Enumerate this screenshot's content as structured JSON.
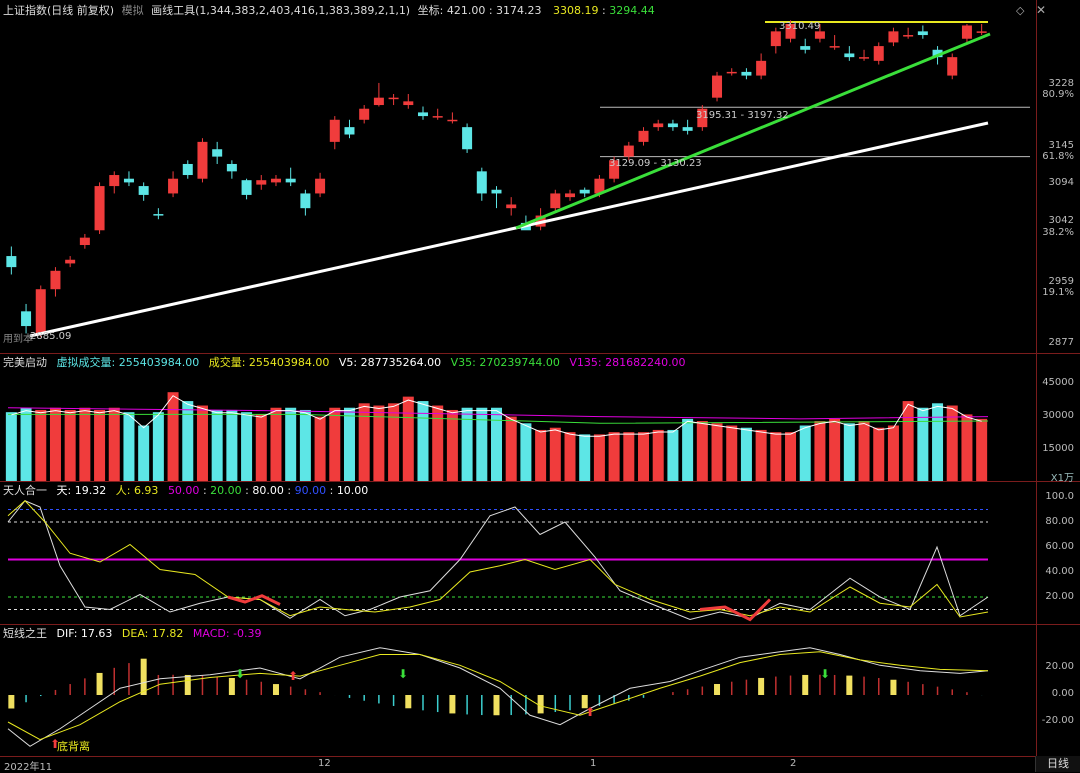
{
  "colors": {
    "up": "#f03c3c",
    "down": "#5de6e6",
    "yellow": "#e8e820",
    "green": "#3adf3a",
    "white": "#ffffff",
    "magenta": "#e000e0",
    "grid": "#7a1c1c"
  },
  "main": {
    "title": "上证指数(日线 前复权)",
    "mode": "模拟",
    "tool": "画线工具(1,344,383,2,403,416,1,383,389,2,1,1)",
    "coord_label": "坐标:",
    "coord_x": "421.00",
    "coord_y": "3174.23",
    "val1": "3308.19",
    "val2": "3294.44",
    "hi_label": "3310.49",
    "lo_label": "2885.09",
    "range1": "3195.31 - 3197.32",
    "range2": "3129.09 - 3130.23",
    "note": "用到本",
    "y_ticks": [
      "3228",
      "3145",
      "3094",
      "3042",
      "2959",
      "2877"
    ],
    "pct_ticks": [
      "80.9%",
      "61.8%",
      "38.2%",
      "19.1%"
    ]
  },
  "vol": {
    "title": "完美启动",
    "sim_label": "虚拟成交量:",
    "sim_val": "255403984.00",
    "vol_label": "成交量:",
    "vol_val": "255403984.00",
    "v5_label": "V5:",
    "v5_val": "287735264.00",
    "v35_label": "V35:",
    "v35_val": "270239744.00",
    "v135_label": "V135:",
    "v135_val": "281682240.00",
    "y_ticks": [
      "45000",
      "30000",
      "15000"
    ],
    "unit": "X1万"
  },
  "tr": {
    "title": "天人合一",
    "tian_label": "天:",
    "tian_val": "19.32",
    "ren_label": "人:",
    "ren_val": "6.93",
    "l50": "50.00",
    "l20": "20.00",
    "l80": "80.00",
    "l90": "90.00",
    "l10": "10.00",
    "y_ticks": [
      "100.0",
      "80.00",
      "60.00",
      "40.00",
      "20.00"
    ]
  },
  "macd": {
    "title": "短线之王",
    "dif_label": "DIF:",
    "dif_val": "17.63",
    "dea_label": "DEA:",
    "dea_val": "17.82",
    "macd_label": "MACD:",
    "macd_val": "-0.39",
    "note": "底背离",
    "y_ticks": [
      "20.00",
      "0.00",
      "-20.00"
    ]
  },
  "dates": [
    "2022年11",
    "12",
    "1",
    "2"
  ],
  "period_tab": "日线",
  "chart_data": {
    "type": "candlestick",
    "x_range": [
      2022.11,
      2023.02
    ],
    "ohlc_approx": [
      [
        2995,
        2980,
        3008,
        2970
      ],
      [
        2920,
        2900,
        2930,
        2890
      ],
      [
        2890,
        2950,
        2955,
        2885
      ],
      [
        2950,
        2975,
        2980,
        2940
      ],
      [
        2985,
        2990,
        2995,
        2980
      ],
      [
        3010,
        3020,
        3025,
        3005
      ],
      [
        3030,
        3090,
        3095,
        3025
      ],
      [
        3090,
        3105,
        3110,
        3080
      ],
      [
        3100,
        3095,
        3110,
        3090
      ],
      [
        3090,
        3078,
        3095,
        3070
      ],
      [
        3052,
        3050,
        3060,
        3045
      ],
      [
        3080,
        3100,
        3110,
        3075
      ],
      [
        3120,
        3105,
        3125,
        3100
      ],
      [
        3100,
        3150,
        3155,
        3095
      ],
      [
        3140,
        3130,
        3150,
        3120
      ],
      [
        3120,
        3110,
        3125,
        3100
      ],
      [
        3098,
        3078,
        3100,
        3072
      ],
      [
        3092,
        3098,
        3105,
        3085
      ],
      [
        3095,
        3100,
        3105,
        3090
      ],
      [
        3100,
        3095,
        3115,
        3090
      ],
      [
        3080,
        3060,
        3085,
        3050
      ],
      [
        3080,
        3100,
        3108,
        3075
      ],
      [
        3150,
        3180,
        3185,
        3140
      ],
      [
        3170,
        3160,
        3180,
        3155
      ],
      [
        3180,
        3195,
        3200,
        3175
      ],
      [
        3200,
        3210,
        3230,
        3198
      ],
      [
        3210,
        3210,
        3215,
        3200
      ],
      [
        3200,
        3205,
        3215,
        3195
      ],
      [
        3190,
        3185,
        3198,
        3180
      ],
      [
        3185,
        3185,
        3195,
        3180
      ],
      [
        3180,
        3180,
        3190,
        3175
      ],
      [
        3170,
        3140,
        3175,
        3135
      ],
      [
        3110,
        3080,
        3115,
        3070
      ],
      [
        3085,
        3080,
        3090,
        3060
      ],
      [
        3060,
        3065,
        3075,
        3050
      ],
      [
        3040,
        3030,
        3050,
        3035
      ],
      [
        3035,
        3050,
        3060,
        3030
      ],
      [
        3060,
        3080,
        3085,
        3055
      ],
      [
        3075,
        3080,
        3085,
        3070
      ],
      [
        3085,
        3080,
        3088,
        3075
      ],
      [
        3080,
        3100,
        3105,
        3075
      ],
      [
        3100,
        3125,
        3130,
        3095
      ],
      [
        3130,
        3145,
        3150,
        3125
      ],
      [
        3150,
        3165,
        3170,
        3145
      ],
      [
        3170,
        3175,
        3180,
        3165
      ],
      [
        3175,
        3170,
        3180,
        3165
      ],
      [
        3170,
        3165,
        3180,
        3160
      ],
      [
        3170,
        3195,
        3200,
        3165
      ],
      [
        3210,
        3240,
        3245,
        3205
      ],
      [
        3245,
        3245,
        3250,
        3240
      ],
      [
        3245,
        3240,
        3250,
        3235
      ],
      [
        3240,
        3260,
        3270,
        3235
      ],
      [
        3280,
        3300,
        3305,
        3270
      ],
      [
        3290,
        3310,
        3315,
        3285
      ],
      [
        3280,
        3275,
        3290,
        3270
      ],
      [
        3290,
        3300,
        3310,
        3285
      ],
      [
        3280,
        3280,
        3295,
        3275
      ],
      [
        3270,
        3265,
        3280,
        3260
      ],
      [
        3265,
        3265,
        3275,
        3260
      ],
      [
        3260,
        3280,
        3285,
        3255
      ],
      [
        3285,
        3300,
        3305,
        3280
      ],
      [
        3295,
        3295,
        3305,
        3290
      ],
      [
        3300,
        3295,
        3308,
        3290
      ],
      [
        3275,
        3265,
        3280,
        3255
      ],
      [
        3240,
        3265,
        3270,
        3235
      ],
      [
        3290,
        3308,
        3310,
        3285
      ],
      [
        3300,
        3300,
        3310,
        3295
      ]
    ]
  }
}
